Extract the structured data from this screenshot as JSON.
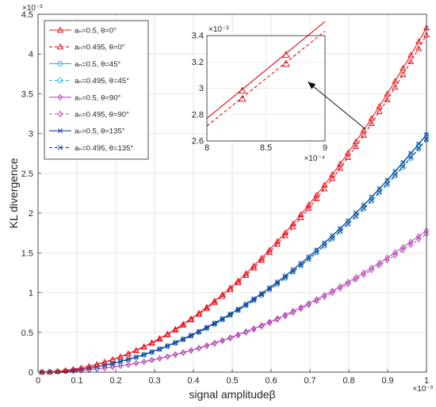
{
  "chart_data": {
    "type": "line",
    "title": "",
    "xlabel": "signal amplitudeβ",
    "ylabel": "KL divergence",
    "x_multiplier": "×10⁻³",
    "y_multiplier": "×10⁻³",
    "xlim": [
      0,
      1
    ],
    "ylim": [
      0,
      4.5
    ],
    "xticks": [
      "0",
      "0.1",
      "0.2",
      "0.3",
      "0.4",
      "0.5",
      "0.6",
      "0.7",
      "0.8",
      "0.9",
      "1"
    ],
    "yticks": [
      "0",
      "0.5",
      "1",
      "1.5",
      "2",
      "2.5",
      "3",
      "3.5",
      "4",
      "4.5"
    ],
    "grid": true,
    "legend_position": "top-left",
    "x_range": [
      0.01,
      1.0
    ],
    "num_points": 50,
    "curve_form": "y = k * x^2",
    "series": [
      {
        "name": "aₙ=0.5, θ=0°",
        "k": 4.33,
        "color": "#e8141e",
        "marker": "triangle",
        "dash": false
      },
      {
        "name": "aₙ=0.495, θ=0°",
        "k": 4.24,
        "color": "#e8141e",
        "marker": "triangle",
        "dash": true
      },
      {
        "name": "aₙ=0.5, θ=45°",
        "k": 2.98,
        "color": "#33b5d9",
        "marker": "circle",
        "dash": false
      },
      {
        "name": "aₙ=0.495, θ=45°",
        "k": 2.92,
        "color": "#33b5d9",
        "marker": "circle",
        "dash": true
      },
      {
        "name": "aₙ=0.5, θ=90°",
        "k": 1.78,
        "color": "#b84db8",
        "marker": "diamond",
        "dash": false
      },
      {
        "name": "aₙ=0.495, θ=90°",
        "k": 1.74,
        "color": "#b84db8",
        "marker": "diamond",
        "dash": true
      },
      {
        "name": "aₙ=0.5, θ=135°",
        "k": 2.99,
        "color": "#1f3d99",
        "marker": "x",
        "dash": false
      },
      {
        "name": "aₙ=0.495, θ=135°",
        "k": 2.93,
        "color": "#1f3d99",
        "marker": "x",
        "dash": true
      }
    ],
    "inset": {
      "xlim": [
        8,
        9
      ],
      "ylim": [
        2.6,
        3.4
      ],
      "xticks": [
        "8",
        "8.5",
        "9"
      ],
      "yticks": [
        "2.6",
        "2.8",
        "3",
        "3.2",
        "3.4"
      ],
      "x_multiplier": "×10⁻⁴",
      "y_multiplier": "×10⁻³",
      "marker_x": [
        8.3,
        8.67
      ],
      "series": [
        {
          "ref": 0,
          "color": "#e8141e",
          "dash": false
        },
        {
          "ref": 1,
          "color": "#e8141e",
          "dash": true
        }
      ]
    }
  }
}
